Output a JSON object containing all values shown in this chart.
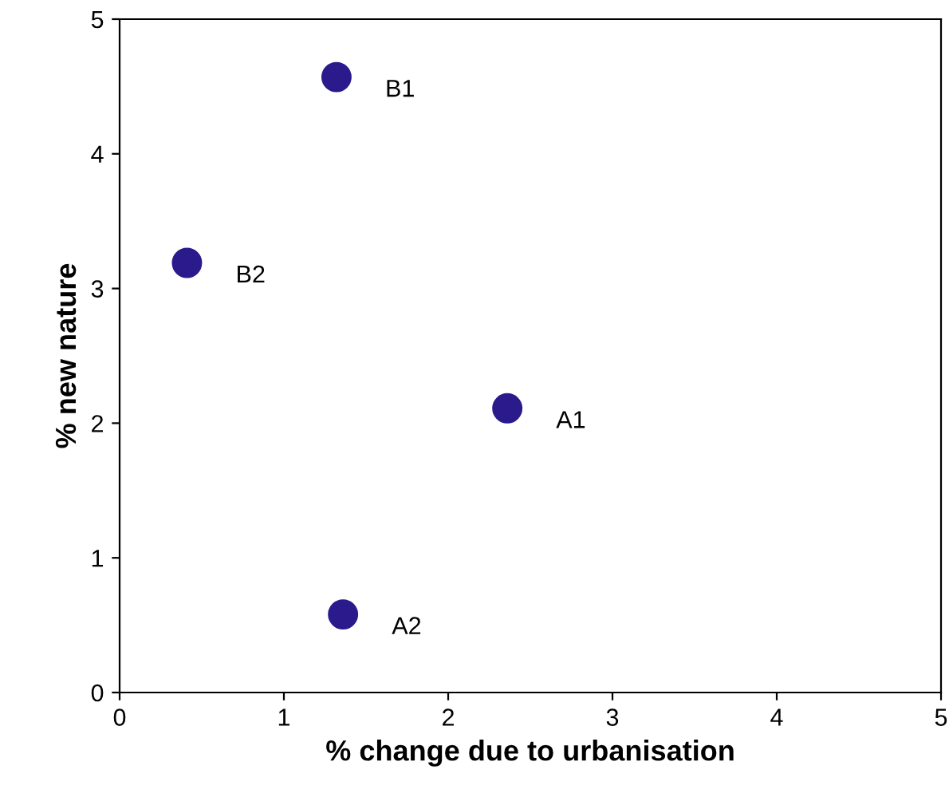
{
  "chart_data": {
    "type": "scatter",
    "xlabel": "% change due to urbanisation",
    "ylabel": "% new nature",
    "x": [
      2.36,
      1.32,
      1.36,
      0.41
    ],
    "series": [
      {
        "color": "#2b1a8c",
        "values": [
          2.11,
          4.57,
          0.58,
          3.19
        ]
      }
    ],
    "xlim": [
      0,
      5
    ],
    "ylim": [
      0,
      5
    ],
    "xticks": [
      0,
      1,
      2,
      3,
      4,
      5
    ],
    "yticks": [
      0,
      1,
      2,
      3,
      4,
      5
    ],
    "grid": false,
    "legend": false,
    "marker": "circle",
    "annotations": [
      {
        "text": "A1",
        "x": 2.36,
        "y": 2.11
      },
      {
        "text": "B1",
        "x": 1.32,
        "y": 4.57
      },
      {
        "text": "A2",
        "x": 1.36,
        "y": 0.58
      },
      {
        "text": "B2",
        "x": 0.41,
        "y": 3.19
      }
    ]
  }
}
